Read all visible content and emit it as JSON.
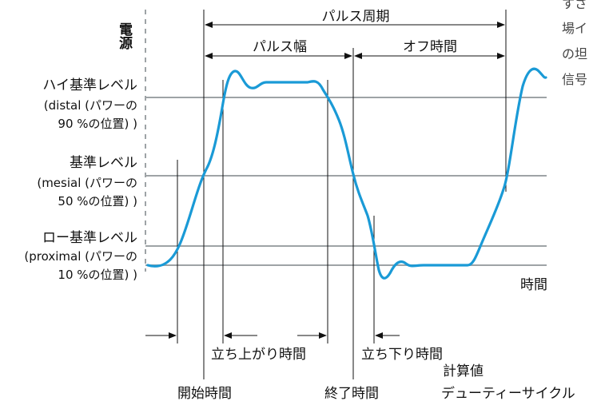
{
  "axes": {
    "y_label": "電源",
    "x_label": "時間"
  },
  "levels": {
    "high": {
      "line1": "ハイ基準レベル",
      "line2": "(distal (パワーの",
      "line3": "90 %の位置) )"
    },
    "mid": {
      "line1": "基準レベル",
      "line2": "(mesial (パワーの",
      "line3": "50 %の位置) )"
    },
    "low": {
      "line1": "ロー基準レベル",
      "line2": "(proximal (パワーの",
      "line3": "10 %の位置) )"
    }
  },
  "timing": {
    "period": "パルス周期",
    "width": "パルス幅",
    "off_time": "オフ時間",
    "rise_time": "立ち上がり時間",
    "fall_time": "立ち下り時間",
    "start_time": "開始時間",
    "end_time": "終了時間",
    "computed": "計算値",
    "duty_cycle": "デューティーサイクル"
  },
  "side_text": [
    "すさ",
    "場イ",
    "の坦",
    "信号"
  ],
  "colors": {
    "signal": "#1a9ad6",
    "reference_line": "#9ea3a6",
    "text": "#111111"
  }
}
